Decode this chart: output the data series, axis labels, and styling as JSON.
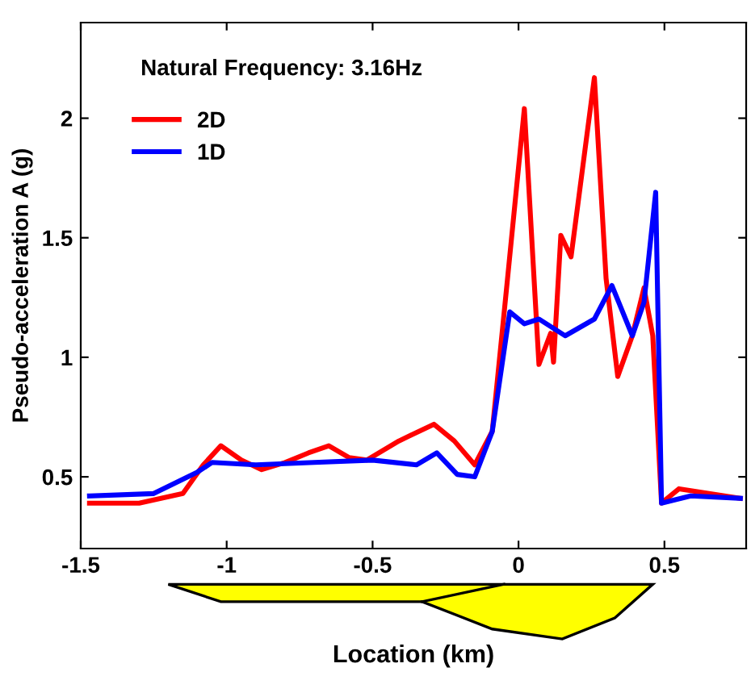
{
  "chart_data": {
    "type": "line",
    "xlabel": "Location (km)",
    "ylabel": "Pseudo-acceleration A (g)",
    "annotations": [
      "Natural Frequency: 3.16Hz"
    ],
    "xlim": [
      -1.5,
      0.78
    ],
    "ylim": [
      0.2,
      2.4
    ],
    "xticks": [
      -1.5,
      -1,
      -0.5,
      0,
      0.5
    ],
    "yticks": [
      0.5,
      1,
      1.5,
      2
    ],
    "grid": false,
    "legend": "top left",
    "line_style": "solid",
    "marker": "none",
    "series": [
      {
        "name": "2D",
        "color": "#ff0000",
        "x": [
          -1.47,
          -1.3,
          -1.15,
          -1.08,
          -1.02,
          -0.95,
          -0.88,
          -0.8,
          -0.72,
          -0.65,
          -0.58,
          -0.52,
          -0.41,
          -0.29,
          -0.22,
          -0.15,
          -0.09,
          -0.04,
          0.02,
          0.07,
          0.11,
          0.12,
          0.145,
          0.18,
          0.26,
          0.3,
          0.34,
          0.39,
          0.43,
          0.46,
          0.49,
          0.55,
          0.76
        ],
        "values": [
          0.39,
          0.39,
          0.43,
          0.55,
          0.63,
          0.57,
          0.53,
          0.56,
          0.6,
          0.63,
          0.58,
          0.57,
          0.65,
          0.72,
          0.65,
          0.55,
          0.69,
          1.3,
          2.04,
          0.97,
          1.1,
          0.98,
          1.51,
          1.42,
          2.17,
          1.33,
          0.92,
          1.09,
          1.29,
          1.09,
          0.39,
          0.45,
          0.41
        ]
      },
      {
        "name": "1D",
        "color": "#0000ff",
        "x": [
          -1.47,
          -1.25,
          -1.1,
          -1.05,
          -0.9,
          -0.7,
          -0.5,
          -0.35,
          -0.28,
          -0.21,
          -0.15,
          -0.09,
          -0.03,
          0.02,
          0.07,
          0.16,
          0.26,
          0.32,
          0.39,
          0.43,
          0.47,
          0.49,
          0.59,
          0.76
        ],
        "values": [
          0.42,
          0.43,
          0.52,
          0.56,
          0.55,
          0.56,
          0.57,
          0.55,
          0.6,
          0.51,
          0.5,
          0.69,
          1.19,
          1.14,
          1.16,
          1.09,
          1.16,
          1.3,
          1.09,
          1.23,
          1.69,
          0.39,
          0.42,
          0.41
        ]
      }
    ]
  }
}
